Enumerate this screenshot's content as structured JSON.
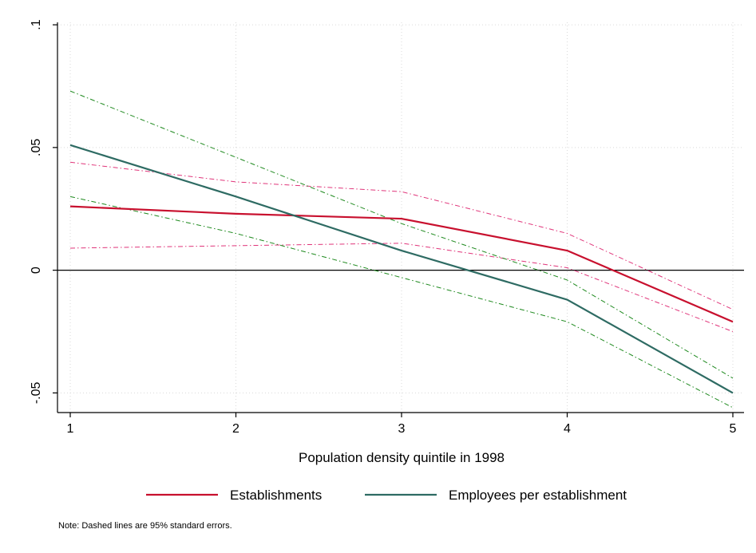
{
  "chart_data": {
    "type": "line",
    "xlabel": "Population density quintile in 1998",
    "ylabel": "",
    "x": [
      1,
      2,
      3,
      4,
      5
    ],
    "xlim": [
      1,
      5
    ],
    "ylim": [
      -0.058,
      0.101
    ],
    "x_ticks": [
      1,
      2,
      3,
      4,
      5
    ],
    "x_tick_labels": [
      "1",
      "2",
      "3",
      "4",
      "5"
    ],
    "y_ticks": [
      -0.05,
      0,
      0.05,
      0.1
    ],
    "y_tick_labels": [
      "-.05",
      "0",
      ".05",
      ".1"
    ],
    "grid": true,
    "zero_line": true,
    "legend_position": "bottom",
    "note": "Note: Dashed lines are 95% standard errors.",
    "colors": {
      "establishments": "#c8102e",
      "employees": "#2e6b63",
      "ci_establishments": "#e0357a",
      "ci_employees": "#1f8a1f",
      "grid": "#d9d9d9",
      "axis": "#000000"
    },
    "series": [
      {
        "name": "Establishments",
        "values": [
          0.026,
          0.023,
          0.021,
          0.008,
          -0.021
        ],
        "upper": [
          0.044,
          0.036,
          0.032,
          0.015,
          -0.016
        ],
        "lower": [
          0.009,
          0.01,
          0.011,
          0.001,
          -0.025
        ]
      },
      {
        "name": "Employees per establishment",
        "values": [
          0.051,
          0.03,
          0.008,
          -0.012,
          -0.05
        ],
        "upper": [
          0.073,
          0.046,
          0.019,
          -0.004,
          -0.044
        ],
        "lower": [
          0.03,
          0.015,
          -0.003,
          -0.021,
          -0.056
        ]
      }
    ]
  }
}
